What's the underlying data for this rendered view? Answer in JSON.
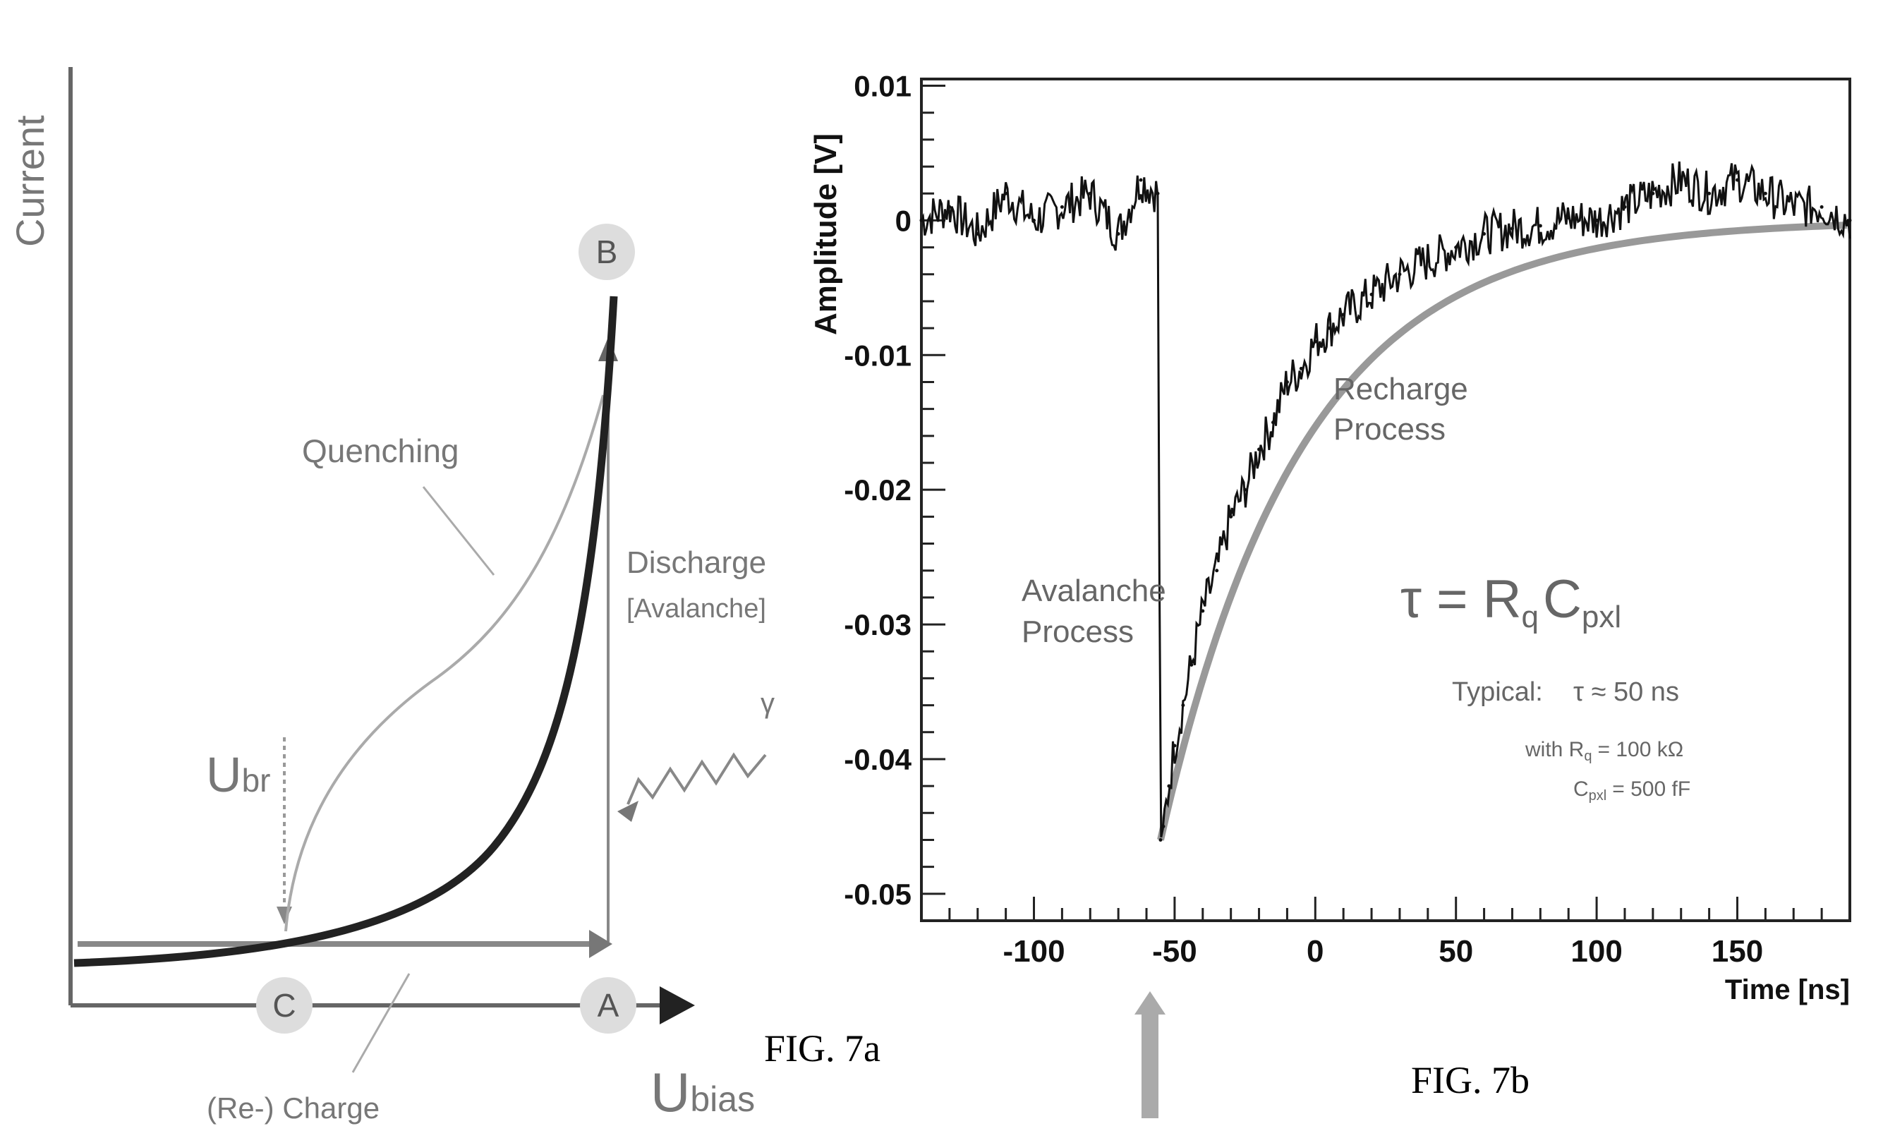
{
  "fig7a": {
    "caption": "FIG. 7a",
    "y_axis_label": "Current",
    "x_axis_label_main": "U",
    "x_axis_label_sub": "bias",
    "ubr_label_main": "U",
    "ubr_label_sub": "br",
    "points": {
      "a": "A",
      "b": "B",
      "c": "C"
    },
    "labels": {
      "quenching": "Quenching",
      "discharge": "Discharge",
      "avalanche": "[Avalanche]",
      "recharge": "(Re-) Charge",
      "photon": "γ"
    }
  },
  "fig7b": {
    "caption": "FIG. 7b",
    "annotations": {
      "recharge_line1": "Recharge",
      "recharge_line2": "Process",
      "avalanche_line1": "Avalanche",
      "avalanche_line2": "Process",
      "equation_tau": "τ = R",
      "equation_rq_sub": "q",
      "equation_c": "C",
      "equation_cpxl_sub": "pxl",
      "typical": "Typical:",
      "typical_value": "τ ≈ 50 ns",
      "with_rq_prefix": "with R",
      "with_rq_sub": "q",
      "with_rq_value": "= 100 kΩ",
      "cpxl_prefix": "C",
      "cpxl_sub": "pxl",
      "cpxl_value": "= 500 fF"
    }
  },
  "chart_data": {
    "type": "line",
    "title": "",
    "xlabel": "Time [ns]",
    "ylabel": "Amplitude [V]",
    "xlim": [
      -140,
      190
    ],
    "ylim": [
      -0.052,
      0.0105
    ],
    "x_ticks": [
      -100,
      -50,
      0,
      50,
      100,
      150
    ],
    "x_tick_labels": [
      "-100",
      "-50",
      "0",
      "50",
      "100",
      "150"
    ],
    "y_ticks": [
      0.01,
      0,
      -0.01,
      -0.02,
      -0.03,
      -0.04,
      -0.05
    ],
    "y_tick_labels": [
      "0.01",
      "0",
      "-0.01",
      "-0.02",
      "-0.03",
      "-0.04",
      "-0.05"
    ],
    "grid": false,
    "series": [
      {
        "x": [
          -140,
          -130,
          -120,
          -110,
          -100,
          -90,
          -80,
          -70,
          -62,
          -56,
          -55,
          -54,
          -52,
          -50,
          -47,
          -44,
          -40,
          -35,
          -30,
          -25,
          -20,
          -15,
          -10,
          -5,
          0,
          5,
          10,
          20,
          30,
          40,
          50,
          60,
          70,
          80,
          90,
          100,
          110,
          120,
          130,
          140,
          150,
          160,
          170,
          180,
          190
        ],
        "values": [
          0.0,
          0.001,
          -0.001,
          0.002,
          0.0,
          0.001,
          0.002,
          -0.001,
          0.003,
          0.002,
          -0.046,
          -0.045,
          -0.042,
          -0.039,
          -0.036,
          -0.033,
          -0.029,
          -0.026,
          -0.022,
          -0.02,
          -0.017,
          -0.015,
          -0.012,
          -0.011,
          -0.009,
          -0.008,
          -0.007,
          -0.0055,
          -0.004,
          -0.003,
          -0.002,
          -0.001,
          -0.0006,
          -0.0004,
          0.0002,
          0.0,
          0.001,
          0.002,
          0.003,
          0.002,
          0.003,
          0.002,
          0.001,
          0.001,
          0.0
        ]
      }
    ],
    "fit_curve": {
      "type": "exponential",
      "t0": -55,
      "amplitude": -0.046,
      "tau": 50
    }
  }
}
